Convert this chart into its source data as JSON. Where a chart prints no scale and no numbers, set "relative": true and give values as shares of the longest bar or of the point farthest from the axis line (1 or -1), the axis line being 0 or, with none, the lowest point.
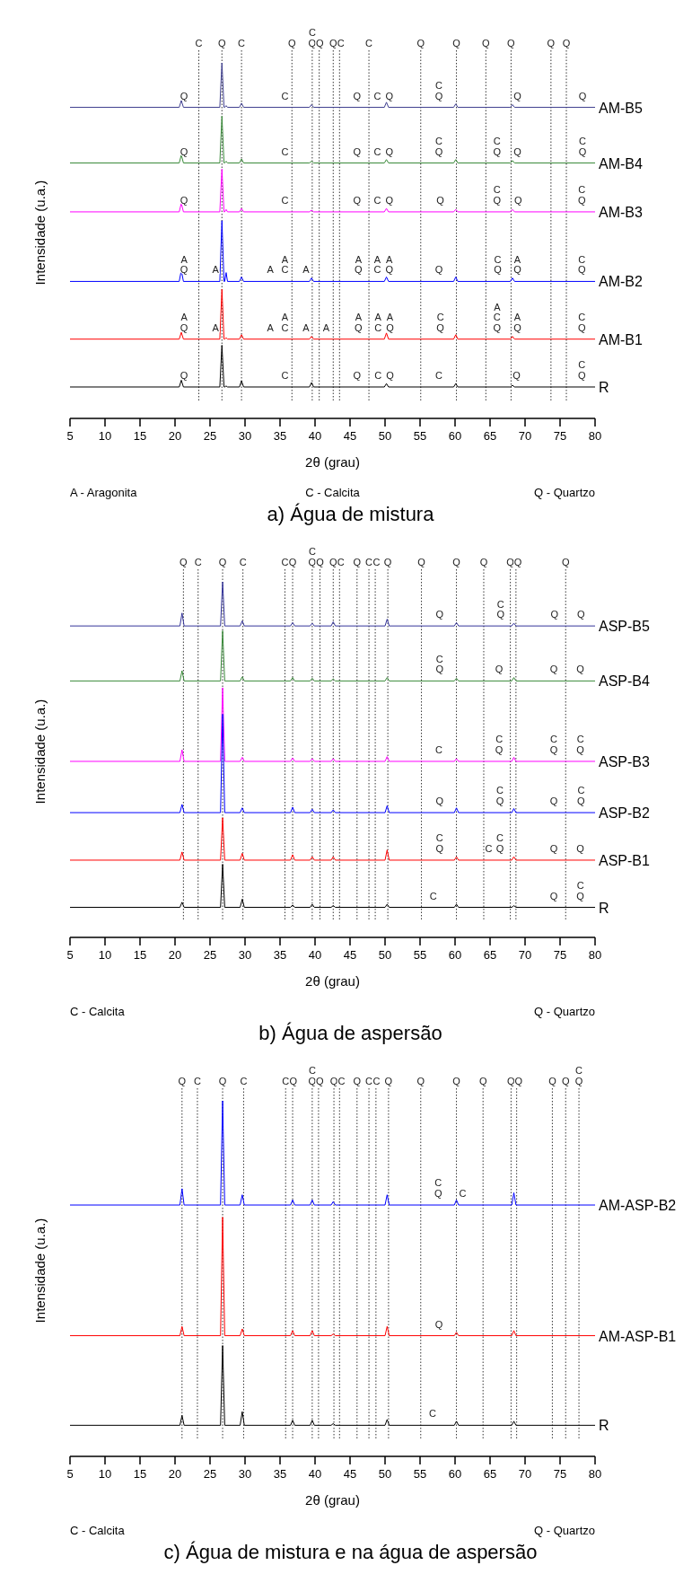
{
  "chart_data": [
    {
      "type": "line",
      "title": "a) Água de mistura",
      "xlabel": "2θ (grau)",
      "ylabel": "Intensidade (u.a.)",
      "relative": true,
      "xlim": [
        5,
        80
      ],
      "xticks": [
        5,
        10,
        15,
        20,
        25,
        30,
        35,
        40,
        45,
        50,
        55,
        60,
        65,
        70,
        75,
        80
      ],
      "series": [
        {
          "name": "AM-B5",
          "color": "#3f3f8f",
          "x": [
            5,
            20.6,
            20.9,
            21.2,
            26.4,
            26.7,
            27.0,
            27.1,
            27.3,
            27.5,
            29.2,
            29.5,
            29.8,
            39.2,
            39.5,
            39.8,
            49.9,
            50.2,
            50.5,
            59.8,
            60.1,
            60.4,
            67.9,
            68.2,
            68.5,
            80
          ],
          "values": [
            0.869,
            0.869,
            0.889,
            0.869,
            0.869,
            1,
            0.869,
            0.869,
            0.874,
            0.869,
            0.869,
            0.881,
            0.869,
            0.869,
            0.877,
            0.869,
            0.869,
            0.884,
            0.869,
            0.869,
            0.879,
            0.869,
            0.869,
            0.877,
            0.869,
            0.869
          ]
        },
        {
          "name": "AM-B4",
          "color": "#3a8a3a",
          "x": [
            5,
            20.6,
            20.9,
            21.2,
            26.4,
            26.7,
            27.0,
            27.1,
            27.3,
            27.5,
            29.2,
            29.5,
            29.8,
            39.2,
            39.5,
            39.8,
            49.9,
            50.2,
            50.5,
            59.8,
            60.1,
            60.4,
            67.9,
            68.2,
            68.5,
            80
          ],
          "values": [
            0.705,
            0.705,
            0.729,
            0.705,
            0.705,
            0.843,
            0.705,
            0.705,
            0.71,
            0.705,
            0.705,
            0.717,
            0.705,
            0.705,
            0.71,
            0.705,
            0.705,
            0.715,
            0.705,
            0.705,
            0.715,
            0.705,
            0.705,
            0.712,
            0.705,
            0.705
          ]
        },
        {
          "name": "AM-B3",
          "color": "#ff00ff",
          "x": [
            5,
            20.6,
            20.9,
            21.2,
            26.4,
            26.7,
            27.0,
            27.1,
            27.3,
            27.5,
            29.2,
            29.5,
            29.8,
            39.2,
            39.5,
            39.8,
            49.9,
            50.2,
            50.5,
            59.8,
            60.1,
            60.4,
            67.9,
            68.2,
            68.5,
            80
          ],
          "values": [
            0.561,
            0.561,
            0.587,
            0.561,
            0.561,
            0.687,
            0.561,
            0.561,
            0.568,
            0.561,
            0.561,
            0.571,
            0.561,
            0.561,
            0.566,
            0.561,
            0.561,
            0.571,
            0.561,
            0.561,
            0.568,
            0.561,
            0.561,
            0.568,
            0.561,
            0.561
          ]
        },
        {
          "name": "AM-B2",
          "color": "#0000ff",
          "x": [
            5,
            20.6,
            20.9,
            21.2,
            26.4,
            26.7,
            27.0,
            27.1,
            27.3,
            27.5,
            29.2,
            29.5,
            29.8,
            39.2,
            39.5,
            39.8,
            49.9,
            50.2,
            50.5,
            59.8,
            60.1,
            60.4,
            67.9,
            68.2,
            68.5,
            80
          ],
          "values": [
            0.356,
            0.356,
            0.389,
            0.356,
            0.356,
            0.535,
            0.356,
            0.356,
            0.382,
            0.356,
            0.356,
            0.369,
            0.356,
            0.356,
            0.366,
            0.356,
            0.356,
            0.369,
            0.356,
            0.356,
            0.369,
            0.356,
            0.356,
            0.366,
            0.356,
            0.356
          ]
        },
        {
          "name": "AM-B1",
          "color": "#ff0000",
          "x": [
            5,
            20.6,
            20.9,
            21.2,
            26.4,
            26.7,
            27.0,
            27.1,
            27.3,
            27.5,
            29.2,
            29.5,
            29.8,
            39.2,
            39.5,
            39.8,
            49.9,
            50.2,
            50.5,
            59.8,
            60.1,
            60.4,
            67.9,
            68.2,
            68.5,
            80
          ],
          "values": [
            0.186,
            0.186,
            0.206,
            0.186,
            0.186,
            0.333,
            0.186,
            0.186,
            0.19,
            0.186,
            0.186,
            0.199,
            0.186,
            0.186,
            0.194,
            0.186,
            0.186,
            0.204,
            0.186,
            0.186,
            0.199,
            0.186,
            0.186,
            0.194,
            0.186,
            0.186
          ]
        },
        {
          "name": "R",
          "color": "#000000",
          "x": [
            5,
            20.6,
            20.9,
            21.2,
            26.4,
            26.7,
            27.0,
            27.1,
            27.3,
            27.5,
            29.2,
            29.5,
            29.8,
            39.2,
            39.5,
            39.8,
            49.9,
            50.2,
            50.5,
            59.8,
            60.1,
            60.4,
            67.9,
            68.2,
            68.5,
            80
          ],
          "values": [
            0.045,
            0.045,
            0.065,
            0.045,
            0.045,
            0.168,
            0.045,
            0.045,
            0.048,
            0.045,
            0.045,
            0.063,
            0.045,
            0.045,
            0.058,
            0.045,
            0.045,
            0.055,
            0.045,
            0.045,
            0.055,
            0.045,
            0.045,
            0.05,
            0.045,
            0.045
          ]
        }
      ],
      "ref_lines": [
        {
          "axis": "x",
          "value": 23.4,
          "label": "C",
          "line_style": "dotted"
        },
        {
          "axis": "x",
          "value": 26.7,
          "label": "Q",
          "line_style": "dotted"
        },
        {
          "axis": "x",
          "value": 29.5,
          "label": "C",
          "line_style": "dotted"
        },
        {
          "axis": "x",
          "value": 36.7,
          "label": "Q",
          "line_style": "dotted"
        },
        {
          "axis": "x",
          "value": 39.6,
          "label": "C\nQ",
          "line_style": "dotted"
        },
        {
          "axis": "x",
          "value": 40.6,
          "label": "Q",
          "line_style": "dotted"
        },
        {
          "axis": "x",
          "value": 42.6,
          "label": "Q",
          "line_style": "dotted"
        },
        {
          "axis": "x",
          "value": 43.5,
          "label": "C",
          "line_style": "dotted"
        },
        {
          "axis": "x",
          "value": 47.7,
          "label": "C",
          "line_style": "dotted"
        },
        {
          "axis": "x",
          "value": 55.1,
          "label": "Q",
          "line_style": "dotted"
        },
        {
          "axis": "x",
          "value": 60.2,
          "label": "Q",
          "line_style": "dotted"
        },
        {
          "axis": "x",
          "value": 64.4,
          "label": "Q",
          "line_style": "dotted"
        },
        {
          "axis": "x",
          "value": 68.0,
          "label": "Q",
          "line_style": "dotted"
        },
        {
          "axis": "x",
          "value": 73.7,
          "label": "Q",
          "line_style": "dotted"
        },
        {
          "axis": "x",
          "value": 75.9,
          "label": "Q",
          "line_style": "dotted"
        }
      ],
      "annotations": [
        {
          "text": "Q",
          "x": 21.3,
          "y": 0.869
        },
        {
          "text": "C",
          "x": 35.7,
          "y": 0.869
        },
        {
          "text": "Q",
          "x": 46.0,
          "y": 0.869
        },
        {
          "text": "C",
          "x": 48.9,
          "y": 0.869
        },
        {
          "text": "Q",
          "x": 50.6,
          "y": 0.869
        },
        {
          "text": "C\nQ",
          "x": 57.7,
          "y": 0.869
        },
        {
          "text": "Q",
          "x": 68.9,
          "y": 0.869
        },
        {
          "text": "Q",
          "x": 78.2,
          "y": 0.869
        },
        {
          "text": "Q",
          "x": 21.3,
          "y": 0.705
        },
        {
          "text": "C",
          "x": 35.7,
          "y": 0.705
        },
        {
          "text": "Q",
          "x": 46.0,
          "y": 0.705
        },
        {
          "text": "C",
          "x": 48.9,
          "y": 0.705
        },
        {
          "text": "Q",
          "x": 50.6,
          "y": 0.705
        },
        {
          "text": "C\nQ",
          "x": 57.7,
          "y": 0.705
        },
        {
          "text": "C\nQ",
          "x": 66.0,
          "y": 0.705
        },
        {
          "text": "Q",
          "x": 68.9,
          "y": 0.705
        },
        {
          "text": "C\nQ",
          "x": 78.2,
          "y": 0.705
        },
        {
          "text": "Q",
          "x": 21.3,
          "y": 0.561
        },
        {
          "text": "C",
          "x": 35.7,
          "y": 0.561
        },
        {
          "text": "Q",
          "x": 46.0,
          "y": 0.561
        },
        {
          "text": "C",
          "x": 48.9,
          "y": 0.561
        },
        {
          "text": "Q",
          "x": 50.6,
          "y": 0.561
        },
        {
          "text": "Q",
          "x": 57.9,
          "y": 0.561
        },
        {
          "text": "C\nQ",
          "x": 66.0,
          "y": 0.561
        },
        {
          "text": "Q",
          "x": 69.0,
          "y": 0.561
        },
        {
          "text": "C\nQ",
          "x": 78.1,
          "y": 0.561
        },
        {
          "text": "A\nQ",
          "x": 21.3,
          "y": 0.356
        },
        {
          "text": "A",
          "x": 25.8,
          "y": 0.356
        },
        {
          "text": "A",
          "x": 33.6,
          "y": 0.356
        },
        {
          "text": "A\nC",
          "x": 35.7,
          "y": 0.356
        },
        {
          "text": "A",
          "x": 38.7,
          "y": 0.356
        },
        {
          "text": "A\nQ",
          "x": 46.2,
          "y": 0.356
        },
        {
          "text": "A\nC",
          "x": 48.9,
          "y": 0.356
        },
        {
          "text": "A\nQ",
          "x": 50.6,
          "y": 0.356
        },
        {
          "text": "Q",
          "x": 57.7,
          "y": 0.356
        },
        {
          "text": "C\nQ",
          "x": 66.1,
          "y": 0.356
        },
        {
          "text": "A\nQ",
          "x": 68.9,
          "y": 0.356
        },
        {
          "text": "C\nQ",
          "x": 78.1,
          "y": 0.356
        },
        {
          "text": "A\nQ",
          "x": 21.3,
          "y": 0.186
        },
        {
          "text": "A",
          "x": 25.8,
          "y": 0.186
        },
        {
          "text": "A",
          "x": 33.6,
          "y": 0.186
        },
        {
          "text": "A\nC",
          "x": 35.7,
          "y": 0.186
        },
        {
          "text": "A",
          "x": 38.7,
          "y": 0.186
        },
        {
          "text": "A",
          "x": 41.6,
          "y": 0.186
        },
        {
          "text": "A\nQ",
          "x": 46.2,
          "y": 0.186
        },
        {
          "text": "A\nC",
          "x": 49.0,
          "y": 0.186
        },
        {
          "text": "A\nQ",
          "x": 50.7,
          "y": 0.186
        },
        {
          "text": "C\nQ",
          "x": 57.9,
          "y": 0.186
        },
        {
          "text": "A\nC\nQ",
          "x": 66.0,
          "y": 0.186
        },
        {
          "text": "A\nQ",
          "x": 68.9,
          "y": 0.186
        },
        {
          "text": "C\nQ",
          "x": 78.1,
          "y": 0.186
        },
        {
          "text": "Q",
          "x": 21.3,
          "y": 0.045
        },
        {
          "text": "C",
          "x": 35.7,
          "y": 0.045
        },
        {
          "text": "Q",
          "x": 46.0,
          "y": 0.045
        },
        {
          "text": "C",
          "x": 49.0,
          "y": 0.045
        },
        {
          "text": "Q",
          "x": 50.7,
          "y": 0.045
        },
        {
          "text": "C",
          "x": 57.7,
          "y": 0.045
        },
        {
          "text": "Q",
          "x": 68.8,
          "y": 0.045
        },
        {
          "text": "C\nQ",
          "x": 78.1,
          "y": 0.045
        },
        "A - Aragonita",
        "C - Calcita",
        "Q - Quartzo"
      ]
    },
    {
      "type": "line",
      "title": "b) Água de aspersão",
      "xlabel": "2θ (grau)",
      "ylabel": "Intensidade (u.a.)",
      "relative": true,
      "xlim": [
        5,
        80
      ],
      "xticks": [
        5,
        10,
        15,
        20,
        25,
        30,
        35,
        40,
        45,
        50,
        55,
        60,
        65,
        70,
        75,
        80
      ],
      "series": [
        {
          "name": "ASP-B5",
          "color": "#333399",
          "x": [
            5,
            20.7,
            21,
            21.3,
            26.5,
            26.8,
            27.1,
            29.3,
            29.6,
            29.9,
            36.5,
            36.8,
            37.1,
            39.3,
            39.6,
            39.9,
            42.3,
            42.6,
            42.9,
            50,
            50.3,
            50.6,
            59.9,
            60.2,
            60.5,
            68.1,
            68.4,
            68.7,
            80
          ],
          "values": [
            0.87,
            0.87,
            0.908,
            0.87,
            0.87,
            1,
            0.87,
            0.87,
            0.885,
            0.87,
            0.87,
            0.88,
            0.87,
            0.87,
            0.878,
            0.87,
            0.87,
            0.882,
            0.87,
            0.87,
            0.89,
            0.87,
            0.87,
            0.88,
            0.87,
            0.87,
            0.878,
            0.87,
            0.87
          ]
        },
        {
          "name": "ASP-B4",
          "color": "#3a8a3a",
          "x": [
            5,
            20.7,
            21,
            21.3,
            26.5,
            26.8,
            27.1,
            29.3,
            29.6,
            29.9,
            36.5,
            36.8,
            37.1,
            39.3,
            39.6,
            39.9,
            42.3,
            42.6,
            42.9,
            50,
            50.3,
            50.6,
            59.9,
            60.2,
            60.5,
            68.1,
            68.4,
            68.7,
            80
          ],
          "values": [
            0.708,
            0.708,
            0.738,
            0.708,
            0.708,
            0.856,
            0.708,
            0.708,
            0.72,
            0.708,
            0.708,
            0.718,
            0.708,
            0.708,
            0.716,
            0.708,
            0.708,
            0.714,
            0.708,
            0.708,
            0.718,
            0.708,
            0.708,
            0.716,
            0.708,
            0.708,
            0.718,
            0.708,
            0.708
          ]
        },
        {
          "name": "ASP-B3",
          "color": "#ff00ff",
          "x": [
            5,
            20.7,
            21,
            21.3,
            26.5,
            26.8,
            27.1,
            29.3,
            29.6,
            29.9,
            36.5,
            36.8,
            37.1,
            39.3,
            39.6,
            39.9,
            42.3,
            42.6,
            42.9,
            50,
            50.3,
            50.6,
            59.9,
            60.2,
            60.5,
            68.1,
            68.4,
            68.7,
            80
          ],
          "values": [
            0.471,
            0.471,
            0.505,
            0.471,
            0.471,
            0.688,
            0.471,
            0.471,
            0.483,
            0.471,
            0.471,
            0.481,
            0.471,
            0.471,
            0.479,
            0.471,
            0.471,
            0.479,
            0.471,
            0.471,
            0.485,
            0.471,
            0.471,
            0.479,
            0.471,
            0.471,
            0.483,
            0.471,
            0.471
          ]
        },
        {
          "name": "ASP-B2",
          "color": "#0000ff",
          "x": [
            5,
            20.7,
            21,
            21.3,
            26.5,
            26.8,
            27.1,
            29.3,
            29.6,
            29.9,
            36.5,
            36.8,
            37.1,
            39.3,
            39.6,
            39.9,
            42.3,
            42.6,
            42.9,
            50,
            50.3,
            50.6,
            59.9,
            60.2,
            60.5,
            68.1,
            68.4,
            68.7,
            80
          ],
          "values": [
            0.32,
            0.32,
            0.344,
            0.32,
            0.32,
            0.61,
            0.32,
            0.32,
            0.334,
            0.32,
            0.32,
            0.336,
            0.32,
            0.32,
            0.33,
            0.32,
            0.32,
            0.328,
            0.32,
            0.32,
            0.34,
            0.32,
            0.32,
            0.334,
            0.32,
            0.32,
            0.332,
            0.32,
            0.32
          ]
        },
        {
          "name": "ASP-B1",
          "color": "#ff0000",
          "x": [
            5,
            20.7,
            21,
            21.3,
            26.5,
            26.8,
            27.1,
            29.3,
            29.6,
            29.9,
            36.5,
            36.8,
            37.1,
            39.3,
            39.6,
            39.9,
            42.3,
            42.6,
            42.9,
            50,
            50.3,
            50.6,
            59.9,
            60.2,
            60.5,
            68.1,
            68.4,
            68.7,
            80
          ],
          "values": [
            0.18,
            0.18,
            0.204,
            0.18,
            0.18,
            0.305,
            0.18,
            0.18,
            0.2,
            0.18,
            0.18,
            0.196,
            0.18,
            0.18,
            0.19,
            0.18,
            0.18,
            0.19,
            0.18,
            0.18,
            0.21,
            0.18,
            0.18,
            0.19,
            0.18,
            0.18,
            0.19,
            0.18,
            0.18
          ]
        },
        {
          "name": "R",
          "color": "#000000",
          "x": [
            5,
            20.7,
            21,
            21.3,
            26.5,
            26.8,
            27.1,
            29.3,
            29.6,
            29.9,
            36.5,
            36.8,
            37.1,
            39.3,
            39.6,
            39.9,
            42.3,
            42.6,
            42.9,
            50,
            50.3,
            50.6,
            59.9,
            60.2,
            60.5,
            68.1,
            68.4,
            68.7,
            80
          ],
          "values": [
            0.041,
            0.041,
            0.056,
            0.041,
            0.041,
            0.168,
            0.041,
            0.041,
            0.065,
            0.041,
            0.041,
            0.048,
            0.041,
            0.041,
            0.05,
            0.041,
            0.041,
            0.046,
            0.041,
            0.041,
            0.05,
            0.041,
            0.041,
            0.05,
            0.041,
            0.041,
            0.046,
            0.041,
            0.041
          ]
        }
      ],
      "ref_lines": [
        {
          "axis": "x",
          "value": 21.2,
          "label": "Q",
          "line_style": "dotted"
        },
        {
          "axis": "x",
          "value": 23.3,
          "label": "C",
          "line_style": "dotted"
        },
        {
          "axis": "x",
          "value": 26.8,
          "label": "Q",
          "line_style": "dotted"
        },
        {
          "axis": "x",
          "value": 29.7,
          "label": "C",
          "line_style": "dotted"
        },
        {
          "axis": "x",
          "value": 35.7,
          "label": "C",
          "line_style": "dotted"
        },
        {
          "axis": "x",
          "value": 36.8,
          "label": "Q",
          "line_style": "dotted"
        },
        {
          "axis": "x",
          "value": 39.6,
          "label": "C\nQ",
          "line_style": "dotted"
        },
        {
          "axis": "x",
          "value": 40.7,
          "label": "Q",
          "line_style": "dotted"
        },
        {
          "axis": "x",
          "value": 42.6,
          "label": "Q",
          "line_style": "dotted"
        },
        {
          "axis": "x",
          "value": 43.5,
          "label": "C",
          "line_style": "dotted"
        },
        {
          "axis": "x",
          "value": 46.0,
          "label": "Q",
          "line_style": "dotted"
        },
        {
          "axis": "x",
          "value": 47.7,
          "label": "C",
          "line_style": "dotted"
        },
        {
          "axis": "x",
          "value": 48.6,
          "label": "C",
          "line_style": "dotted"
        },
        {
          "axis": "x",
          "value": 50.4,
          "label": "Q",
          "line_style": "dotted"
        },
        {
          "axis": "x",
          "value": 55.2,
          "label": "Q",
          "line_style": "dotted"
        },
        {
          "axis": "x",
          "value": 60.2,
          "label": "Q",
          "line_style": "dotted"
        },
        {
          "axis": "x",
          "value": 64.1,
          "label": "Q",
          "line_style": "dotted"
        },
        {
          "axis": "x",
          "value": 67.9,
          "label": "Q",
          "line_style": "dotted"
        },
        {
          "axis": "x",
          "value": 68.7,
          "label": "Q",
          "line_style": "dotted"
        },
        {
          "axis": "x",
          "value": 75.8,
          "label": "Q",
          "line_style": "dotted"
        }
      ],
      "annotations": [
        {
          "text": "Q",
          "x": 57.8,
          "y": 0.87
        },
        {
          "text": "C\nQ",
          "x": 66.5,
          "y": 0.87
        },
        {
          "text": "Q",
          "x": 74.2,
          "y": 0.87
        },
        {
          "text": "Q",
          "x": 78.0,
          "y": 0.87
        },
        {
          "text": "C\nQ",
          "x": 57.8,
          "y": 0.708
        },
        {
          "text": "Q",
          "x": 66.3,
          "y": 0.708
        },
        {
          "text": "Q",
          "x": 74.1,
          "y": 0.708
        },
        {
          "text": "Q",
          "x": 77.9,
          "y": 0.708
        },
        {
          "text": "C",
          "x": 57.7,
          "y": 0.471
        },
        {
          "text": "C\nQ",
          "x": 66.3,
          "y": 0.471
        },
        {
          "text": "C\nQ",
          "x": 74.1,
          "y": 0.471
        },
        {
          "text": "C\nQ",
          "x": 77.9,
          "y": 0.471
        },
        {
          "text": "Q",
          "x": 57.8,
          "y": 0.32
        },
        {
          "text": "C\nQ",
          "x": 66.4,
          "y": 0.32
        },
        {
          "text": "Q",
          "x": 74.1,
          "y": 0.32
        },
        {
          "text": "C\nQ",
          "x": 78.0,
          "y": 0.32
        },
        {
          "text": "C\nQ",
          "x": 57.8,
          "y": 0.18
        },
        {
          "text": "C",
          "x": 64.8,
          "y": 0.18
        },
        {
          "text": "C\nQ",
          "x": 66.4,
          "y": 0.18
        },
        {
          "text": "Q",
          "x": 74.1,
          "y": 0.18
        },
        {
          "text": "Q",
          "x": 77.9,
          "y": 0.18
        },
        {
          "text": "C",
          "x": 56.9,
          "y": 0.041
        },
        {
          "text": "Q",
          "x": 74.1,
          "y": 0.041
        },
        {
          "text": "C\nQ",
          "x": 77.9,
          "y": 0.041
        },
        "C - Calcita",
        "Q - Quartzo"
      ]
    },
    {
      "type": "line",
      "title": "c) Água de mistura e na água de aspersão",
      "xlabel": "2θ (grau)",
      "ylabel": "Intensidade (u.a.)",
      "relative": true,
      "xlim": [
        5,
        80
      ],
      "xticks": [
        5,
        10,
        15,
        20,
        25,
        30,
        35,
        40,
        45,
        50,
        55,
        60,
        65,
        70,
        75,
        80
      ],
      "series": [
        {
          "name": "AM-ASP-B2",
          "color": "#0000ff",
          "x": [
            5,
            20.7,
            21,
            21.3,
            26.5,
            26.8,
            27.1,
            29.3,
            29.6,
            29.9,
            36.5,
            36.8,
            37.1,
            39.3,
            39.6,
            39.9,
            42.3,
            42.6,
            42.9,
            50,
            50.3,
            50.6,
            59.9,
            60.2,
            60.5,
            68.1,
            68.4,
            68.7,
            80
          ],
          "values": [
            0.693,
            0.693,
            0.741,
            0.693,
            0.693,
            1,
            0.693,
            0.693,
            0.723,
            0.693,
            0.693,
            0.708,
            0.693,
            0.693,
            0.708,
            0.693,
            0.693,
            0.703,
            0.693,
            0.693,
            0.723,
            0.693,
            0.693,
            0.708,
            0.693,
            0.693,
            0.729,
            0.693,
            0.693
          ]
        },
        {
          "name": "AM-ASP-B1",
          "color": "#ff0000",
          "x": [
            5,
            20.7,
            21,
            21.3,
            26.5,
            26.8,
            27.1,
            29.3,
            29.6,
            29.9,
            36.5,
            36.8,
            37.1,
            39.3,
            39.6,
            39.9,
            42.3,
            42.6,
            42.9,
            50,
            50.3,
            50.6,
            59.9,
            60.2,
            60.5,
            68.1,
            68.4,
            68.7,
            80
          ],
          "values": [
            0.308,
            0.308,
            0.335,
            0.308,
            0.308,
            0.657,
            0.308,
            0.308,
            0.328,
            0.308,
            0.308,
            0.323,
            0.308,
            0.308,
            0.323,
            0.308,
            0.308,
            0.313,
            0.308,
            0.308,
            0.335,
            0.308,
            0.308,
            0.318,
            0.308,
            0.308,
            0.323,
            0.308,
            0.308
          ]
        },
        {
          "name": "R",
          "color": "#000000",
          "x": [
            5,
            20.7,
            21,
            21.3,
            26.5,
            26.8,
            27.1,
            29.3,
            29.6,
            29.9,
            36.5,
            36.8,
            37.1,
            39.3,
            39.6,
            39.9,
            42.3,
            42.6,
            42.9,
            50,
            50.3,
            50.6,
            59.9,
            60.2,
            60.5,
            68.1,
            68.4,
            68.7,
            80
          ],
          "values": [
            0.044,
            0.044,
            0.073,
            0.044,
            0.044,
            0.279,
            0.044,
            0.044,
            0.084,
            0.044,
            0.044,
            0.059,
            0.044,
            0.044,
            0.059,
            0.044,
            0.044,
            0.049,
            0.044,
            0.044,
            0.061,
            0.044,
            0.044,
            0.056,
            0.044,
            0.044,
            0.056,
            0.044,
            0.044
          ]
        }
      ],
      "ref_lines": [
        {
          "axis": "x",
          "value": 21.0,
          "label": "Q",
          "line_style": "dotted"
        },
        {
          "axis": "x",
          "value": 23.2,
          "label": "C",
          "line_style": "dotted"
        },
        {
          "axis": "x",
          "value": 26.8,
          "label": "Q",
          "line_style": "dotted"
        },
        {
          "axis": "x",
          "value": 29.8,
          "label": "C",
          "line_style": "dotted"
        },
        {
          "axis": "x",
          "value": 35.8,
          "label": "C",
          "line_style": "dotted"
        },
        {
          "axis": "x",
          "value": 36.8,
          "label": "Q",
          "line_style": "dotted"
        },
        {
          "axis": "x",
          "value": 39.6,
          "label": "C\nQ",
          "line_style": "dotted"
        },
        {
          "axis": "x",
          "value": 40.5,
          "label": "Q",
          "line_style": "dotted"
        },
        {
          "axis": "x",
          "value": 42.7,
          "label": "Q",
          "line_style": "dotted"
        },
        {
          "axis": "x",
          "value": 43.5,
          "label": "C",
          "line_style": "dotted"
        },
        {
          "axis": "x",
          "value": 46.0,
          "label": "Q",
          "line_style": "dotted"
        },
        {
          "axis": "x",
          "value": 47.7,
          "label": "C",
          "line_style": "dotted"
        },
        {
          "axis": "x",
          "value": 48.7,
          "label": "C",
          "line_style": "dotted"
        },
        {
          "axis": "x",
          "value": 50.5,
          "label": "Q",
          "line_style": "dotted"
        },
        {
          "axis": "x",
          "value": 55.1,
          "label": "Q",
          "line_style": "dotted"
        },
        {
          "axis": "x",
          "value": 60.2,
          "label": "Q",
          "line_style": "dotted"
        },
        {
          "axis": "x",
          "value": 64.0,
          "label": "Q",
          "line_style": "dotted"
        },
        {
          "axis": "x",
          "value": 68.0,
          "label": "Q",
          "line_style": "dotted"
        },
        {
          "axis": "x",
          "value": 68.8,
          "label": "Q",
          "line_style": "dotted"
        },
        {
          "axis": "x",
          "value": 73.9,
          "label": "Q",
          "line_style": "dotted"
        },
        {
          "axis": "x",
          "value": 75.8,
          "label": "Q",
          "line_style": "dotted"
        },
        {
          "axis": "x",
          "value": 77.7,
          "label": "C\nQ",
          "line_style": "dotted"
        }
      ],
      "annotations": [
        {
          "text": "C\nQ",
          "x": 57.6,
          "y": 0.693
        },
        {
          "text": "C",
          "x": 61.1,
          "y": 0.693
        },
        {
          "text": "Q",
          "x": 57.7,
          "y": 0.308
        },
        {
          "text": "C",
          "x": 56.8,
          "y": 0.044
        },
        "C - Calcita",
        "Q - Quartzo"
      ]
    }
  ]
}
